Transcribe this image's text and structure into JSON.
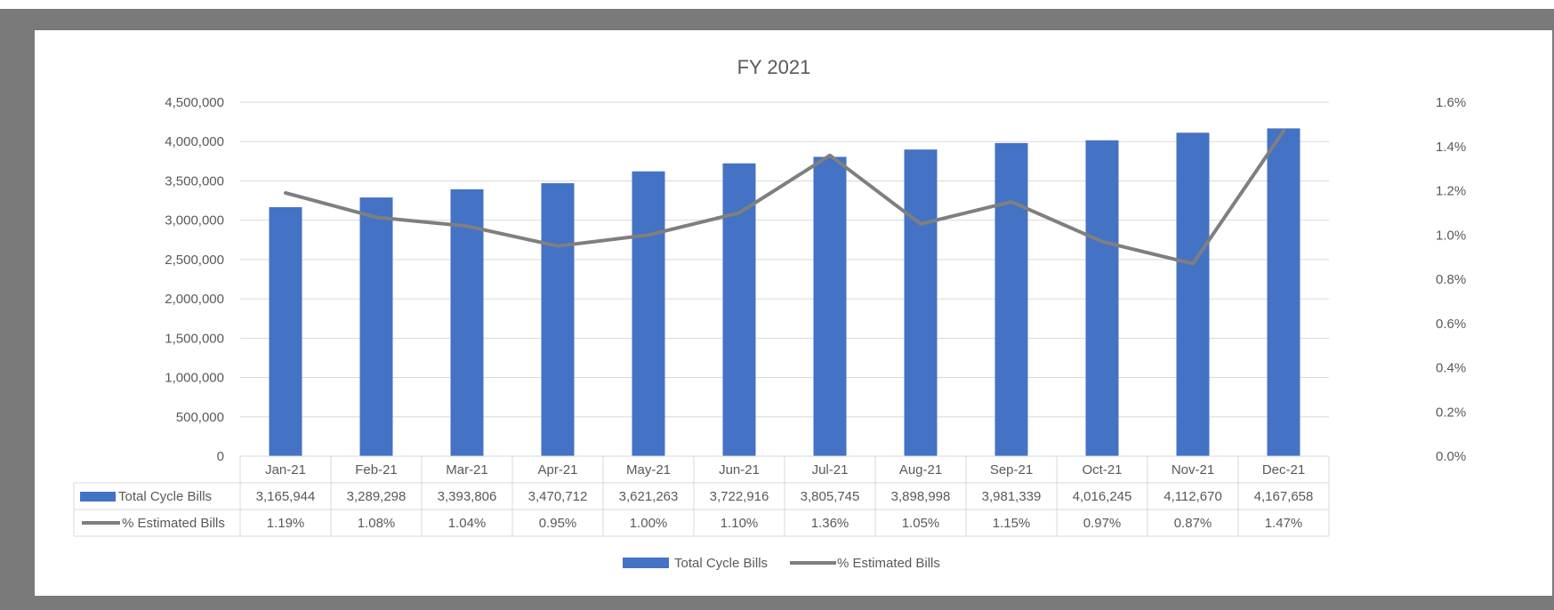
{
  "chart_data": {
    "type": "bar+line",
    "title": "FY 2021",
    "categories": [
      "Jan-21",
      "Feb-21",
      "Mar-21",
      "Apr-21",
      "May-21",
      "Jun-21",
      "Jul-21",
      "Aug-21",
      "Sep-21",
      "Oct-21",
      "Nov-21",
      "Dec-21"
    ],
    "series": [
      {
        "name": "Total Cycle Bills",
        "type": "bar",
        "axis": "left",
        "color": "#4472c4",
        "values": [
          3165944,
          3289298,
          3393806,
          3470712,
          3621263,
          3722916,
          3805745,
          3898998,
          3981339,
          4016245,
          4112670,
          4167658
        ],
        "labels": [
          "3,165,944",
          "3,289,298",
          "3,393,806",
          "3,470,712",
          "3,621,263",
          "3,722,916",
          "3,805,745",
          "3,898,998",
          "3,981,339",
          "4,016,245",
          "4,112,670",
          "4,167,658"
        ]
      },
      {
        "name": "% Estimated Bills",
        "type": "line",
        "axis": "right",
        "color": "#7f7f7f",
        "values": [
          1.19,
          1.08,
          1.04,
          0.95,
          1.0,
          1.1,
          1.36,
          1.05,
          1.15,
          0.97,
          0.87,
          1.47
        ],
        "labels": [
          "1.19%",
          "1.08%",
          "1.04%",
          "0.95%",
          "1.00%",
          "1.10%",
          "1.36%",
          "1.05%",
          "1.15%",
          "0.97%",
          "0.87%",
          "1.47%"
        ]
      }
    ],
    "y_left": {
      "min": 0,
      "max": 4500000,
      "ticks": [
        0,
        500000,
        1000000,
        1500000,
        2000000,
        2500000,
        3000000,
        3500000,
        4000000,
        4500000
      ],
      "tick_labels": [
        "0",
        "500,000",
        "1,000,000",
        "1,500,000",
        "2,000,000",
        "2,500,000",
        "3,000,000",
        "3,500,000",
        "4,000,000",
        "4,500,000"
      ]
    },
    "y_right": {
      "min": 0,
      "max": 1.6,
      "ticks": [
        0,
        0.2,
        0.4,
        0.6,
        0.8,
        1.0,
        1.2,
        1.4,
        1.6
      ],
      "tick_labels": [
        "0.0%",
        "0.2%",
        "0.4%",
        "0.6%",
        "0.8%",
        "1.0%",
        "1.2%",
        "1.4%",
        "1.6%"
      ]
    },
    "grid": true,
    "data_table": true,
    "legend": {
      "position": "bottom",
      "entries": [
        "Total Cycle Bills",
        "% Estimated Bills"
      ]
    }
  }
}
